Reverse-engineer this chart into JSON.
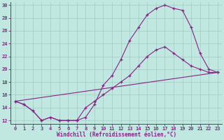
{
  "xlabel": "Windchill (Refroidissement éolien,°C)",
  "bg_color": "#c0e8e0",
  "line_color": "#882288",
  "grid_color": "#a0ccc0",
  "xlim_min": -0.5,
  "xlim_max": 23.5,
  "ylim_min": 11.5,
  "ylim_max": 30.5,
  "yticks": [
    12,
    14,
    16,
    18,
    20,
    22,
    24,
    26,
    28,
    30
  ],
  "xticks": [
    0,
    1,
    2,
    3,
    4,
    5,
    6,
    7,
    8,
    9,
    10,
    11,
    12,
    13,
    14,
    15,
    16,
    17,
    18,
    19,
    20,
    21,
    22,
    23
  ],
  "curve1_x": [
    0,
    1,
    2,
    3,
    4,
    5,
    6,
    7,
    8,
    9,
    10,
    11,
    12,
    13,
    14,
    15,
    16,
    17,
    18,
    19,
    20,
    21,
    22,
    23
  ],
  "curve1_y": [
    15.0,
    14.5,
    13.5,
    12.0,
    12.5,
    12.0,
    12.0,
    12.0,
    12.5,
    14.5,
    17.5,
    19.0,
    21.5,
    24.5,
    26.5,
    28.5,
    29.5,
    30.0,
    29.5,
    29.2,
    26.5,
    22.5,
    20.0,
    19.5
  ],
  "curve2_x": [
    0,
    1,
    2,
    3,
    4,
    5,
    6,
    7,
    8,
    9,
    10,
    11,
    12,
    13,
    14,
    15,
    16,
    17,
    18,
    19,
    20,
    21,
    22,
    23
  ],
  "curve2_y": [
    15.0,
    14.5,
    13.5,
    12.0,
    12.5,
    12.0,
    12.0,
    12.0,
    14.0,
    15.0,
    16.0,
    17.0,
    18.0,
    19.0,
    20.5,
    22.0,
    23.0,
    23.5,
    22.5,
    21.5,
    20.5,
    20.0,
    19.5,
    19.5
  ],
  "line3_x": [
    0,
    23
  ],
  "line3_y": [
    15.0,
    19.5
  ]
}
